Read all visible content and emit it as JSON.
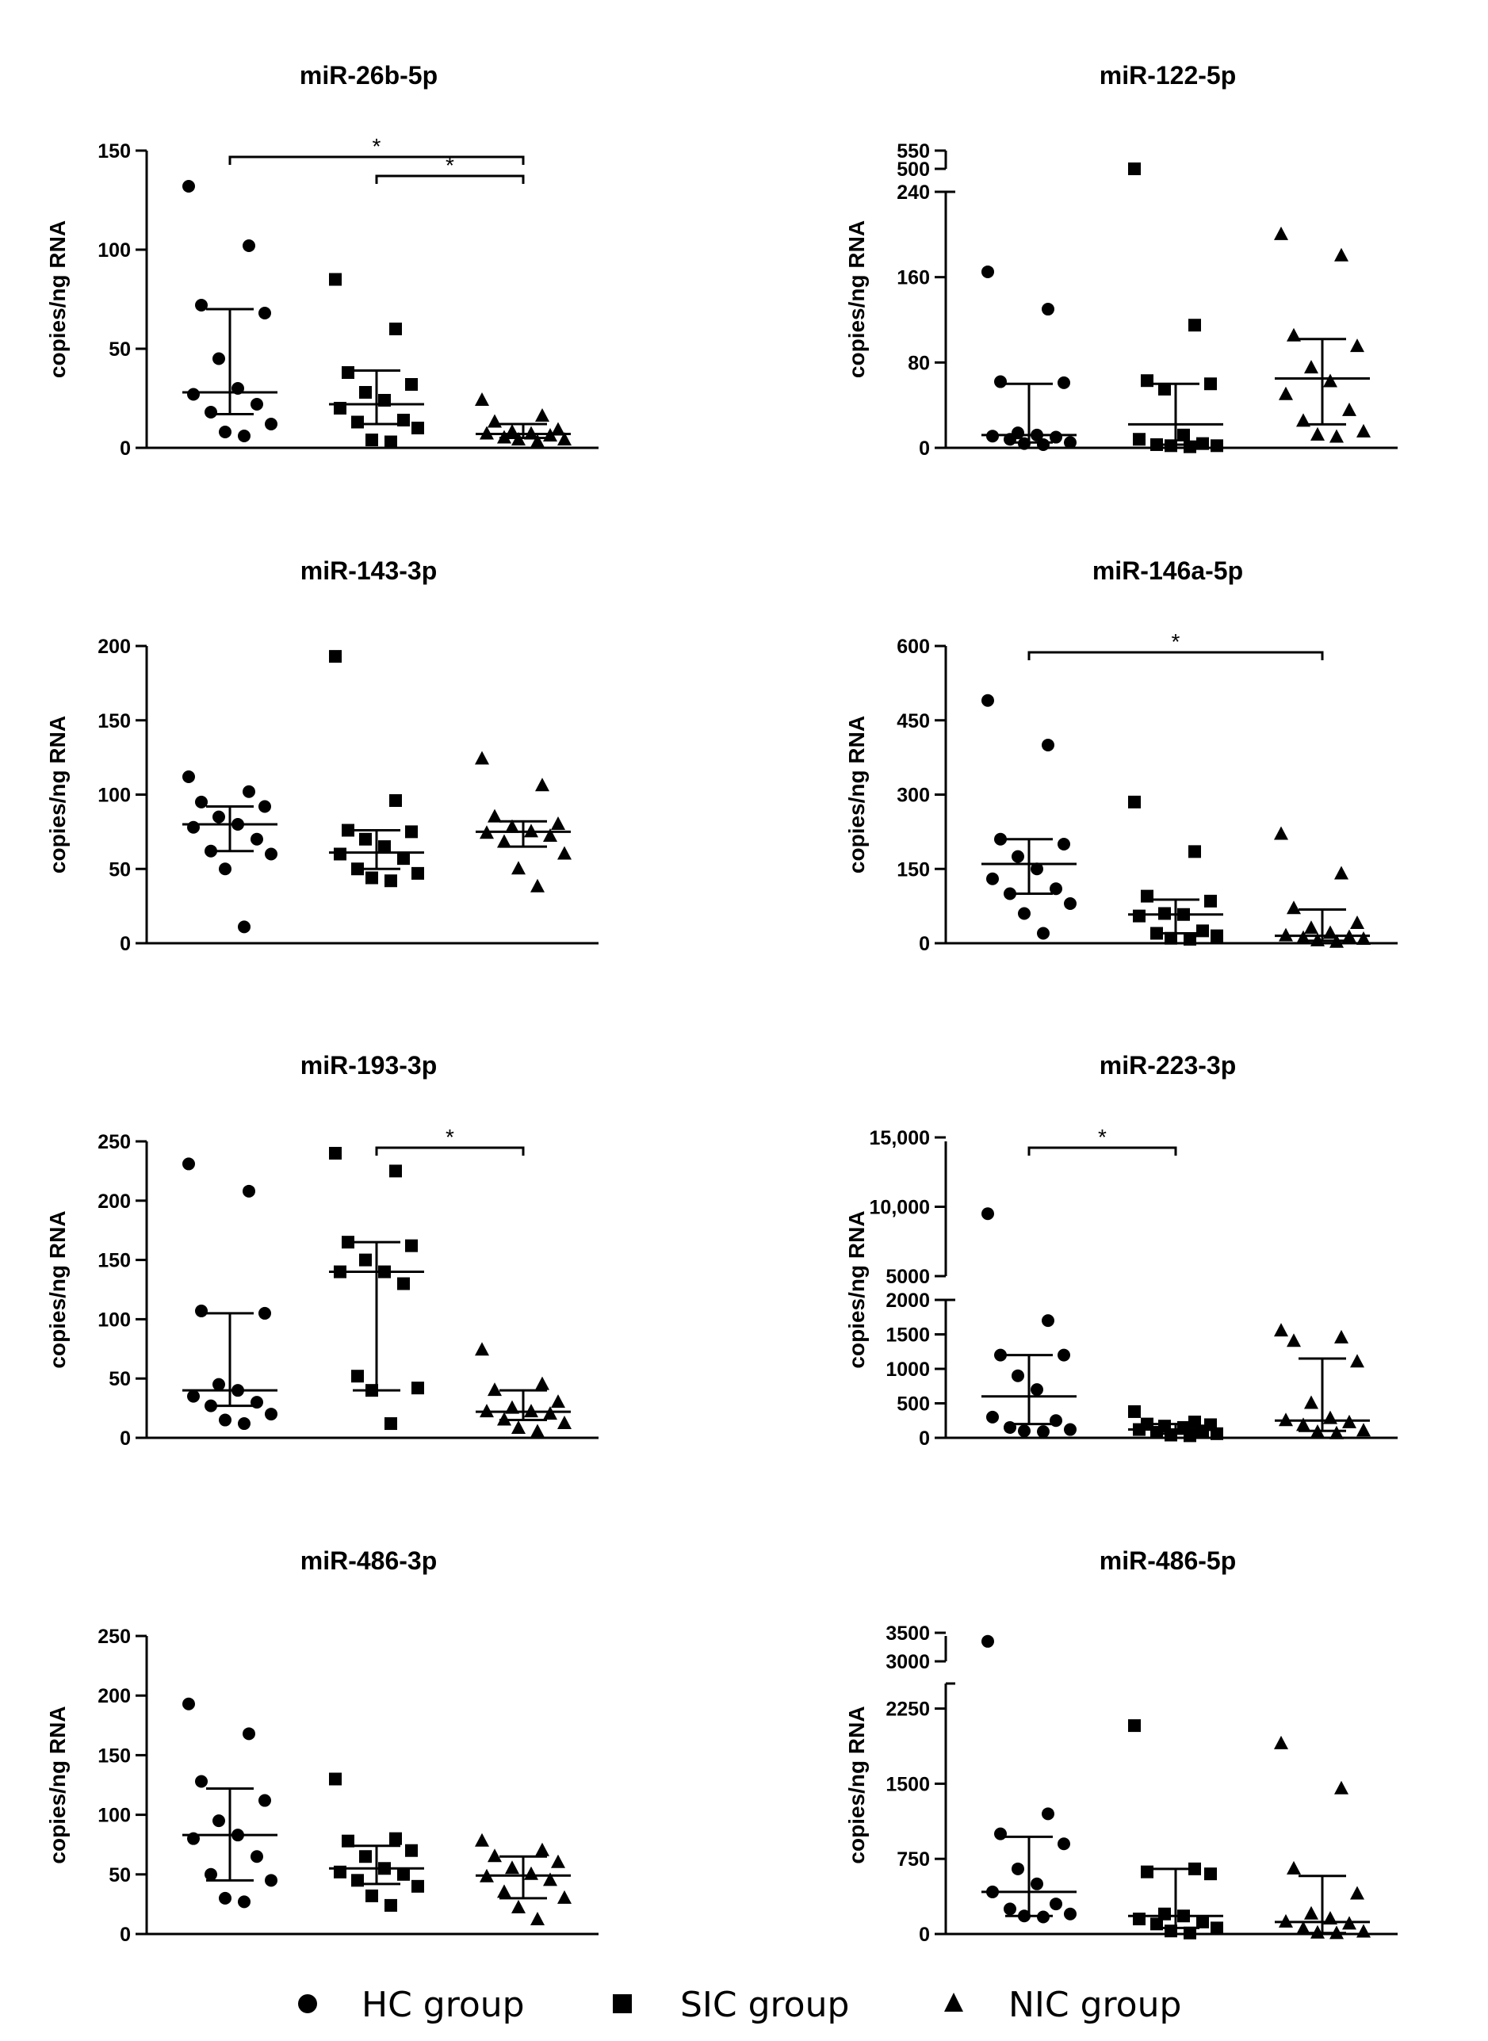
{
  "legend": {
    "items": [
      {
        "label": "HC group",
        "marker": "circle"
      },
      {
        "label": "SIC group",
        "marker": "square"
      },
      {
        "label": "NIC group",
        "marker": "triangle"
      }
    ]
  },
  "chart_data": [
    {
      "type": "scatter",
      "title": "miR-26b-5p",
      "ylabel": "copies/ng RNA",
      "categories": [
        "HC group",
        "SIC group",
        "NIC group"
      ],
      "ylim": [
        0,
        150
      ],
      "yticks": [
        0,
        50,
        100,
        150
      ],
      "yticklabels": [
        "0",
        "50",
        "100",
        "150"
      ],
      "groups": [
        {
          "name": "HC group",
          "marker": "circle",
          "median": 28,
          "q1": 17,
          "q3": 70,
          "points": [
            132,
            102,
            72,
            68,
            45,
            30,
            27,
            22,
            18,
            12,
            8,
            6
          ]
        },
        {
          "name": "SIC group",
          "marker": "square",
          "median": 22,
          "q1": 12,
          "q3": 39,
          "points": [
            85,
            60,
            38,
            32,
            28,
            24,
            20,
            14,
            13,
            10,
            4,
            3
          ]
        },
        {
          "name": "NIC group",
          "marker": "triangle",
          "median": 7,
          "q1": 5,
          "q3": 12,
          "points": [
            24,
            16,
            13,
            9,
            8,
            7,
            7,
            6,
            5,
            4,
            4,
            3
          ]
        }
      ],
      "significance": [
        {
          "from": 0,
          "to": 2,
          "label": "*"
        },
        {
          "from": 1,
          "to": 2,
          "label": "*"
        }
      ]
    },
    {
      "type": "scatter",
      "title": "miR-122-5p",
      "ylabel": "copies/ng RNA",
      "categories": [
        "HC group",
        "SIC group",
        "NIC group"
      ],
      "ylim": [
        0,
        550
      ],
      "axis_break": {
        "lower": [
          0,
          240
        ],
        "upper": [
          500,
          550
        ]
      },
      "yticks": [
        0,
        80,
        160,
        240,
        500,
        550
      ],
      "yticklabels": [
        "0",
        "80",
        "160",
        "240",
        "500",
        "550"
      ],
      "groups": [
        {
          "name": "HC group",
          "marker": "circle",
          "median": 12,
          "q1": 5,
          "q3": 60,
          "points": [
            165,
            130,
            62,
            61,
            14,
            12,
            11,
            10,
            8,
            5,
            4,
            3
          ]
        },
        {
          "name": "SIC group",
          "marker": "square",
          "median": 22,
          "q1": 3,
          "q3": 60,
          "points": [
            500,
            115,
            63,
            60,
            55,
            12,
            8,
            4,
            3,
            2,
            2,
            1
          ]
        },
        {
          "name": "NIC group",
          "marker": "triangle",
          "median": 65,
          "q1": 22,
          "q3": 102,
          "points": [
            200,
            180,
            105,
            95,
            75,
            62,
            50,
            35,
            25,
            15,
            12,
            10
          ]
        }
      ],
      "significance": []
    },
    {
      "type": "scatter",
      "title": "miR-143-3p",
      "ylabel": "copies/ng RNA",
      "categories": [
        "HC group",
        "SIC group",
        "NIC group"
      ],
      "ylim": [
        0,
        200
      ],
      "yticks": [
        0,
        50,
        100,
        150,
        200
      ],
      "yticklabels": [
        "0",
        "50",
        "100",
        "150",
        "200"
      ],
      "groups": [
        {
          "name": "HC group",
          "marker": "circle",
          "median": 80,
          "q1": 62,
          "q3": 92,
          "points": [
            112,
            102,
            95,
            92,
            85,
            80,
            78,
            70,
            62,
            60,
            50,
            11
          ]
        },
        {
          "name": "SIC group",
          "marker": "square",
          "median": 61,
          "q1": 50,
          "q3": 76,
          "points": [
            193,
            96,
            76,
            75,
            70,
            65,
            60,
            57,
            50,
            47,
            44,
            42
          ]
        },
        {
          "name": "NIC group",
          "marker": "triangle",
          "median": 75,
          "q1": 65,
          "q3": 82,
          "points": [
            124,
            106,
            85,
            80,
            78,
            75,
            74,
            72,
            68,
            60,
            50,
            38
          ]
        }
      ],
      "significance": []
    },
    {
      "type": "scatter",
      "title": "miR-146a-5p",
      "ylabel": "copies/ng RNA",
      "categories": [
        "HC group",
        "SIC group",
        "NIC group"
      ],
      "ylim": [
        0,
        600
      ],
      "yticks": [
        0,
        150,
        300,
        450,
        600
      ],
      "yticklabels": [
        "0",
        "150",
        "300",
        "450",
        "600"
      ],
      "groups": [
        {
          "name": "HC group",
          "marker": "circle",
          "median": 160,
          "q1": 100,
          "q3": 210,
          "points": [
            490,
            400,
            210,
            200,
            175,
            150,
            130,
            110,
            100,
            80,
            60,
            20
          ]
        },
        {
          "name": "SIC group",
          "marker": "square",
          "median": 58,
          "q1": 20,
          "q3": 88,
          "points": [
            285,
            185,
            95,
            85,
            60,
            58,
            55,
            25,
            20,
            15,
            10,
            8
          ]
        },
        {
          "name": "NIC group",
          "marker": "triangle",
          "median": 15,
          "q1": 5,
          "q3": 68,
          "points": [
            220,
            140,
            70,
            40,
            30,
            20,
            15,
            12,
            10,
            8,
            5,
            2
          ]
        }
      ],
      "significance": [
        {
          "from": 0,
          "to": 2,
          "label": "*"
        }
      ]
    },
    {
      "type": "scatter",
      "title": "miR-193-3p",
      "ylabel": "copies/ng RNA",
      "categories": [
        "HC group",
        "SIC group",
        "NIC group"
      ],
      "ylim": [
        0,
        250
      ],
      "yticks": [
        0,
        50,
        100,
        150,
        200,
        250
      ],
      "yticklabels": [
        "0",
        "50",
        "100",
        "150",
        "200",
        "250"
      ],
      "groups": [
        {
          "name": "HC group",
          "marker": "circle",
          "median": 40,
          "q1": 27,
          "q3": 105,
          "points": [
            231,
            208,
            107,
            105,
            45,
            40,
            35,
            30,
            27,
            20,
            15,
            12
          ]
        },
        {
          "name": "SIC group",
          "marker": "square",
          "median": 140,
          "q1": 40,
          "q3": 165,
          "points": [
            240,
            225,
            165,
            162,
            150,
            140,
            140,
            130,
            52,
            42,
            40,
            12
          ]
        },
        {
          "name": "NIC group",
          "marker": "triangle",
          "median": 22,
          "q1": 15,
          "q3": 40,
          "points": [
            74,
            45,
            40,
            30,
            25,
            22,
            22,
            20,
            15,
            12,
            8,
            5
          ]
        }
      ],
      "significance": [
        {
          "from": 1,
          "to": 2,
          "label": "*"
        }
      ]
    },
    {
      "type": "scatter",
      "title": "miR-223-3p",
      "ylabel": "copies/ng RNA",
      "categories": [
        "HC group",
        "SIC group",
        "NIC group"
      ],
      "ylim": [
        0,
        15000
      ],
      "axis_break": {
        "lower": [
          0,
          2000
        ],
        "upper": [
          5000,
          15000
        ]
      },
      "yticks": [
        0,
        500,
        1000,
        1500,
        2000,
        5000,
        10000,
        15000
      ],
      "yticklabels": [
        "0",
        "500",
        "1000",
        "1500",
        "2000",
        "5000",
        "10,000",
        "15,000"
      ],
      "groups": [
        {
          "name": "HC group",
          "marker": "circle",
          "median": 600,
          "q1": 200,
          "q3": 1200,
          "points": [
            9500,
            1700,
            1200,
            1200,
            900,
            700,
            300,
            250,
            150,
            120,
            100,
            90
          ]
        },
        {
          "name": "SIC group",
          "marker": "square",
          "median": 120,
          "q1": 60,
          "q3": 200,
          "points": [
            380,
            230,
            200,
            190,
            170,
            150,
            120,
            100,
            80,
            60,
            40,
            30
          ]
        },
        {
          "name": "NIC group",
          "marker": "triangle",
          "median": 250,
          "q1": 100,
          "q3": 1150,
          "points": [
            1550,
            1450,
            1400,
            1100,
            500,
            280,
            250,
            220,
            180,
            100,
            80,
            60
          ]
        }
      ],
      "significance": [
        {
          "from": 0,
          "to": 1,
          "label": "*"
        }
      ]
    },
    {
      "type": "scatter",
      "title": "miR-486-3p",
      "ylabel": "copies/ng RNA",
      "categories": [
        "HC group",
        "SIC group",
        "NIC group"
      ],
      "ylim": [
        0,
        250
      ],
      "yticks": [
        0,
        50,
        100,
        150,
        200,
        250
      ],
      "yticklabels": [
        "0",
        "50",
        "100",
        "150",
        "200",
        "250"
      ],
      "groups": [
        {
          "name": "HC group",
          "marker": "circle",
          "median": 83,
          "q1": 45,
          "q3": 122,
          "points": [
            193,
            168,
            128,
            112,
            95,
            83,
            80,
            65,
            50,
            45,
            30,
            27
          ]
        },
        {
          "name": "SIC group",
          "marker": "square",
          "median": 55,
          "q1": 42,
          "q3": 74,
          "points": [
            130,
            80,
            78,
            70,
            65,
            55,
            52,
            50,
            45,
            40,
            32,
            24
          ]
        },
        {
          "name": "NIC group",
          "marker": "triangle",
          "median": 49,
          "q1": 30,
          "q3": 65,
          "points": [
            78,
            70,
            65,
            60,
            55,
            50,
            48,
            45,
            35,
            30,
            22,
            12
          ]
        }
      ],
      "significance": []
    },
    {
      "type": "scatter",
      "title": "miR-486-5p",
      "ylabel": "copies/ng RNA",
      "categories": [
        "HC group",
        "SIC group",
        "NIC group"
      ],
      "ylim": [
        0,
        3500
      ],
      "axis_break": {
        "lower": [
          0,
          2500
        ],
        "upper": [
          3000,
          3500
        ]
      },
      "yticks": [
        0,
        750,
        1500,
        2250,
        3000,
        3500
      ],
      "yticklabels": [
        "0",
        "750",
        "1500",
        "2250",
        "3000",
        "3500"
      ],
      "groups": [
        {
          "name": "HC group",
          "marker": "circle",
          "median": 420,
          "q1": 180,
          "q3": 970,
          "points": [
            3350,
            1200,
            1000,
            900,
            650,
            500,
            420,
            300,
            250,
            200,
            180,
            170
          ]
        },
        {
          "name": "SIC group",
          "marker": "square",
          "median": 180,
          "q1": 60,
          "q3": 650,
          "points": [
            2080,
            650,
            620,
            600,
            200,
            180,
            150,
            120,
            100,
            60,
            30,
            10
          ]
        },
        {
          "name": "NIC group",
          "marker": "triangle",
          "median": 120,
          "q1": 10,
          "q3": 580,
          "points": [
            1900,
            1450,
            650,
            400,
            200,
            150,
            120,
            100,
            50,
            20,
            10,
            5
          ]
        }
      ],
      "significance": []
    }
  ]
}
